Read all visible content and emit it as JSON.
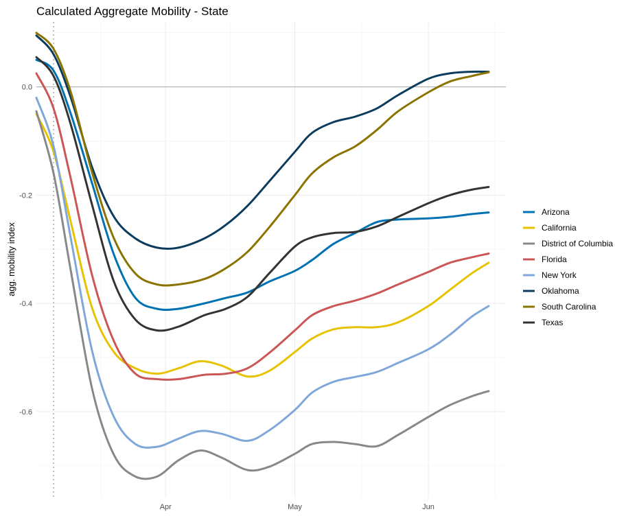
{
  "chart_data": {
    "type": "line",
    "title": "Calculated Aggregate Mobility - State",
    "xlabel": "",
    "ylabel": "agg. mobility index",
    "x_axis": {
      "type": "date",
      "range": [
        "2020-03-02",
        "2020-06-19"
      ],
      "ticks": [
        {
          "label": "Apr",
          "date": "2020-04-01"
        },
        {
          "label": "May",
          "date": "2020-05-01"
        },
        {
          "label": "Jun",
          "date": "2020-06-01"
        }
      ]
    },
    "y_axis": {
      "range": [
        -0.76,
        0.12
      ],
      "ticks": [
        0.0,
        -0.2,
        -0.4,
        -0.6
      ],
      "tick_labels": [
        "0.0",
        "-0.2",
        "-0.4",
        "-0.6"
      ],
      "minor_ticks": [
        0.1,
        -0.1,
        -0.3,
        -0.5,
        -0.7
      ]
    },
    "grid": true,
    "reference_lines": [
      {
        "axis": "y",
        "value": 0.0,
        "style": "solid"
      },
      {
        "axis": "x",
        "value": "2020-03-06",
        "style": "dotted"
      }
    ],
    "legend_position": "right",
    "series": [
      {
        "name": "Arizona",
        "color": "#0072B2",
        "points": [
          [
            "2020-03-02",
            0.05
          ],
          [
            "2020-03-06",
            0.03
          ],
          [
            "2020-03-10",
            -0.05
          ],
          [
            "2020-03-15",
            -0.18
          ],
          [
            "2020-03-20",
            -0.31
          ],
          [
            "2020-03-25",
            -0.39
          ],
          [
            "2020-03-30",
            -0.41
          ],
          [
            "2020-04-04",
            -0.41
          ],
          [
            "2020-04-10",
            -0.4
          ],
          [
            "2020-04-15",
            -0.39
          ],
          [
            "2020-04-20",
            -0.38
          ],
          [
            "2020-04-25",
            -0.36
          ],
          [
            "2020-05-01",
            -0.34
          ],
          [
            "2020-05-05",
            -0.32
          ],
          [
            "2020-05-10",
            -0.29
          ],
          [
            "2020-05-15",
            -0.27
          ],
          [
            "2020-05-20",
            -0.25
          ],
          [
            "2020-05-25",
            -0.245
          ],
          [
            "2020-06-01",
            -0.243
          ],
          [
            "2020-06-06",
            -0.24
          ],
          [
            "2020-06-11",
            -0.235
          ],
          [
            "2020-06-15",
            -0.232
          ]
        ]
      },
      {
        "name": "California",
        "color": "#E6C200",
        "points": [
          [
            "2020-03-02",
            -0.05
          ],
          [
            "2020-03-06",
            -0.12
          ],
          [
            "2020-03-10",
            -0.25
          ],
          [
            "2020-03-15",
            -0.41
          ],
          [
            "2020-03-20",
            -0.49
          ],
          [
            "2020-03-25",
            -0.52
          ],
          [
            "2020-03-30",
            -0.53
          ],
          [
            "2020-04-04",
            -0.52
          ],
          [
            "2020-04-09",
            -0.507
          ],
          [
            "2020-04-14",
            -0.515
          ],
          [
            "2020-04-20",
            -0.535
          ],
          [
            "2020-04-25",
            -0.525
          ],
          [
            "2020-05-01",
            -0.49
          ],
          [
            "2020-05-05",
            -0.465
          ],
          [
            "2020-05-10",
            -0.448
          ],
          [
            "2020-05-15",
            -0.444
          ],
          [
            "2020-05-20",
            -0.444
          ],
          [
            "2020-05-25",
            -0.435
          ],
          [
            "2020-06-01",
            -0.405
          ],
          [
            "2020-06-06",
            -0.375
          ],
          [
            "2020-06-11",
            -0.345
          ],
          [
            "2020-06-15",
            -0.325
          ]
        ]
      },
      {
        "name": "District of Columbia",
        "color": "#888888",
        "points": [
          [
            "2020-03-02",
            -0.045
          ],
          [
            "2020-03-06",
            -0.16
          ],
          [
            "2020-03-10",
            -0.34
          ],
          [
            "2020-03-15",
            -0.56
          ],
          [
            "2020-03-20",
            -0.68
          ],
          [
            "2020-03-25",
            -0.72
          ],
          [
            "2020-03-30",
            -0.72
          ],
          [
            "2020-04-04",
            -0.69
          ],
          [
            "2020-04-09",
            -0.672
          ],
          [
            "2020-04-14",
            -0.685
          ],
          [
            "2020-04-20",
            -0.708
          ],
          [
            "2020-04-25",
            -0.702
          ],
          [
            "2020-05-01",
            -0.678
          ],
          [
            "2020-05-05",
            -0.66
          ],
          [
            "2020-05-10",
            -0.656
          ],
          [
            "2020-05-15",
            -0.66
          ],
          [
            "2020-05-20",
            -0.664
          ],
          [
            "2020-05-25",
            -0.643
          ],
          [
            "2020-06-01",
            -0.61
          ],
          [
            "2020-06-06",
            -0.588
          ],
          [
            "2020-06-11",
            -0.572
          ],
          [
            "2020-06-15",
            -0.562
          ]
        ]
      },
      {
        "name": "Florida",
        "color": "#CC5555",
        "points": [
          [
            "2020-03-02",
            0.025
          ],
          [
            "2020-03-06",
            -0.04
          ],
          [
            "2020-03-10",
            -0.17
          ],
          [
            "2020-03-15",
            -0.35
          ],
          [
            "2020-03-20",
            -0.47
          ],
          [
            "2020-03-25",
            -0.53
          ],
          [
            "2020-03-30",
            -0.54
          ],
          [
            "2020-04-04",
            -0.54
          ],
          [
            "2020-04-10",
            -0.532
          ],
          [
            "2020-04-15",
            -0.53
          ],
          [
            "2020-04-20",
            -0.52
          ],
          [
            "2020-04-25",
            -0.492
          ],
          [
            "2020-05-01",
            -0.45
          ],
          [
            "2020-05-05",
            -0.422
          ],
          [
            "2020-05-10",
            -0.405
          ],
          [
            "2020-05-15",
            -0.395
          ],
          [
            "2020-05-20",
            -0.382
          ],
          [
            "2020-05-25",
            -0.365
          ],
          [
            "2020-06-01",
            -0.342
          ],
          [
            "2020-06-06",
            -0.325
          ],
          [
            "2020-06-11",
            -0.315
          ],
          [
            "2020-06-15",
            -0.308
          ]
        ]
      },
      {
        "name": "New York",
        "color": "#7FA7D9",
        "points": [
          [
            "2020-03-02",
            -0.02
          ],
          [
            "2020-03-06",
            -0.11
          ],
          [
            "2020-03-10",
            -0.28
          ],
          [
            "2020-03-15",
            -0.49
          ],
          [
            "2020-03-20",
            -0.61
          ],
          [
            "2020-03-25",
            -0.66
          ],
          [
            "2020-03-30",
            -0.665
          ],
          [
            "2020-04-04",
            -0.65
          ],
          [
            "2020-04-09",
            -0.636
          ],
          [
            "2020-04-14",
            -0.641
          ],
          [
            "2020-04-20",
            -0.654
          ],
          [
            "2020-04-25",
            -0.635
          ],
          [
            "2020-05-01",
            -0.597
          ],
          [
            "2020-05-05",
            -0.565
          ],
          [
            "2020-05-10",
            -0.545
          ],
          [
            "2020-05-15",
            -0.536
          ],
          [
            "2020-05-20",
            -0.527
          ],
          [
            "2020-05-25",
            -0.51
          ],
          [
            "2020-06-01",
            -0.485
          ],
          [
            "2020-06-06",
            -0.458
          ],
          [
            "2020-06-11",
            -0.425
          ],
          [
            "2020-06-15",
            -0.405
          ]
        ]
      },
      {
        "name": "Oklahoma",
        "color": "#0B3C5D",
        "points": [
          [
            "2020-03-02",
            0.095
          ],
          [
            "2020-03-06",
            0.06
          ],
          [
            "2020-03-10",
            -0.02
          ],
          [
            "2020-03-15",
            -0.15
          ],
          [
            "2020-03-20",
            -0.24
          ],
          [
            "2020-03-25",
            -0.28
          ],
          [
            "2020-03-30",
            -0.297
          ],
          [
            "2020-04-04",
            -0.297
          ],
          [
            "2020-04-10",
            -0.28
          ],
          [
            "2020-04-15",
            -0.255
          ],
          [
            "2020-04-20",
            -0.22
          ],
          [
            "2020-04-25",
            -0.175
          ],
          [
            "2020-05-01",
            -0.12
          ],
          [
            "2020-05-05",
            -0.085
          ],
          [
            "2020-05-10",
            -0.065
          ],
          [
            "2020-05-15",
            -0.055
          ],
          [
            "2020-05-20",
            -0.04
          ],
          [
            "2020-05-25",
            -0.015
          ],
          [
            "2020-06-01",
            0.015
          ],
          [
            "2020-06-06",
            0.025
          ],
          [
            "2020-06-11",
            0.028
          ],
          [
            "2020-06-15",
            0.028
          ]
        ]
      },
      {
        "name": "South Carolina",
        "color": "#8B7300",
        "points": [
          [
            "2020-03-02",
            0.1
          ],
          [
            "2020-03-06",
            0.07
          ],
          [
            "2020-03-10",
            -0.01
          ],
          [
            "2020-03-15",
            -0.16
          ],
          [
            "2020-03-20",
            -0.28
          ],
          [
            "2020-03-25",
            -0.345
          ],
          [
            "2020-03-30",
            -0.365
          ],
          [
            "2020-04-04",
            -0.365
          ],
          [
            "2020-04-10",
            -0.355
          ],
          [
            "2020-04-15",
            -0.335
          ],
          [
            "2020-04-20",
            -0.305
          ],
          [
            "2020-04-25",
            -0.26
          ],
          [
            "2020-05-01",
            -0.2
          ],
          [
            "2020-05-05",
            -0.16
          ],
          [
            "2020-05-10",
            -0.13
          ],
          [
            "2020-05-15",
            -0.11
          ],
          [
            "2020-05-20",
            -0.08
          ],
          [
            "2020-05-25",
            -0.045
          ],
          [
            "2020-06-01",
            -0.01
          ],
          [
            "2020-06-06",
            0.01
          ],
          [
            "2020-06-11",
            0.02
          ],
          [
            "2020-06-15",
            0.027
          ]
        ]
      },
      {
        "name": "Texas",
        "color": "#333333",
        "points": [
          [
            "2020-03-02",
            0.055
          ],
          [
            "2020-03-06",
            0.02
          ],
          [
            "2020-03-10",
            -0.07
          ],
          [
            "2020-03-15",
            -0.22
          ],
          [
            "2020-03-20",
            -0.36
          ],
          [
            "2020-03-25",
            -0.43
          ],
          [
            "2020-03-30",
            -0.45
          ],
          [
            "2020-04-04",
            -0.443
          ],
          [
            "2020-04-10",
            -0.422
          ],
          [
            "2020-04-15",
            -0.41
          ],
          [
            "2020-04-20",
            -0.388
          ],
          [
            "2020-04-25",
            -0.345
          ],
          [
            "2020-05-01",
            -0.295
          ],
          [
            "2020-05-05",
            -0.278
          ],
          [
            "2020-05-10",
            -0.27
          ],
          [
            "2020-05-15",
            -0.268
          ],
          [
            "2020-05-20",
            -0.258
          ],
          [
            "2020-05-25",
            -0.24
          ],
          [
            "2020-06-01",
            -0.215
          ],
          [
            "2020-06-06",
            -0.2
          ],
          [
            "2020-06-11",
            -0.19
          ],
          [
            "2020-06-15",
            -0.185
          ]
        ]
      }
    ]
  }
}
